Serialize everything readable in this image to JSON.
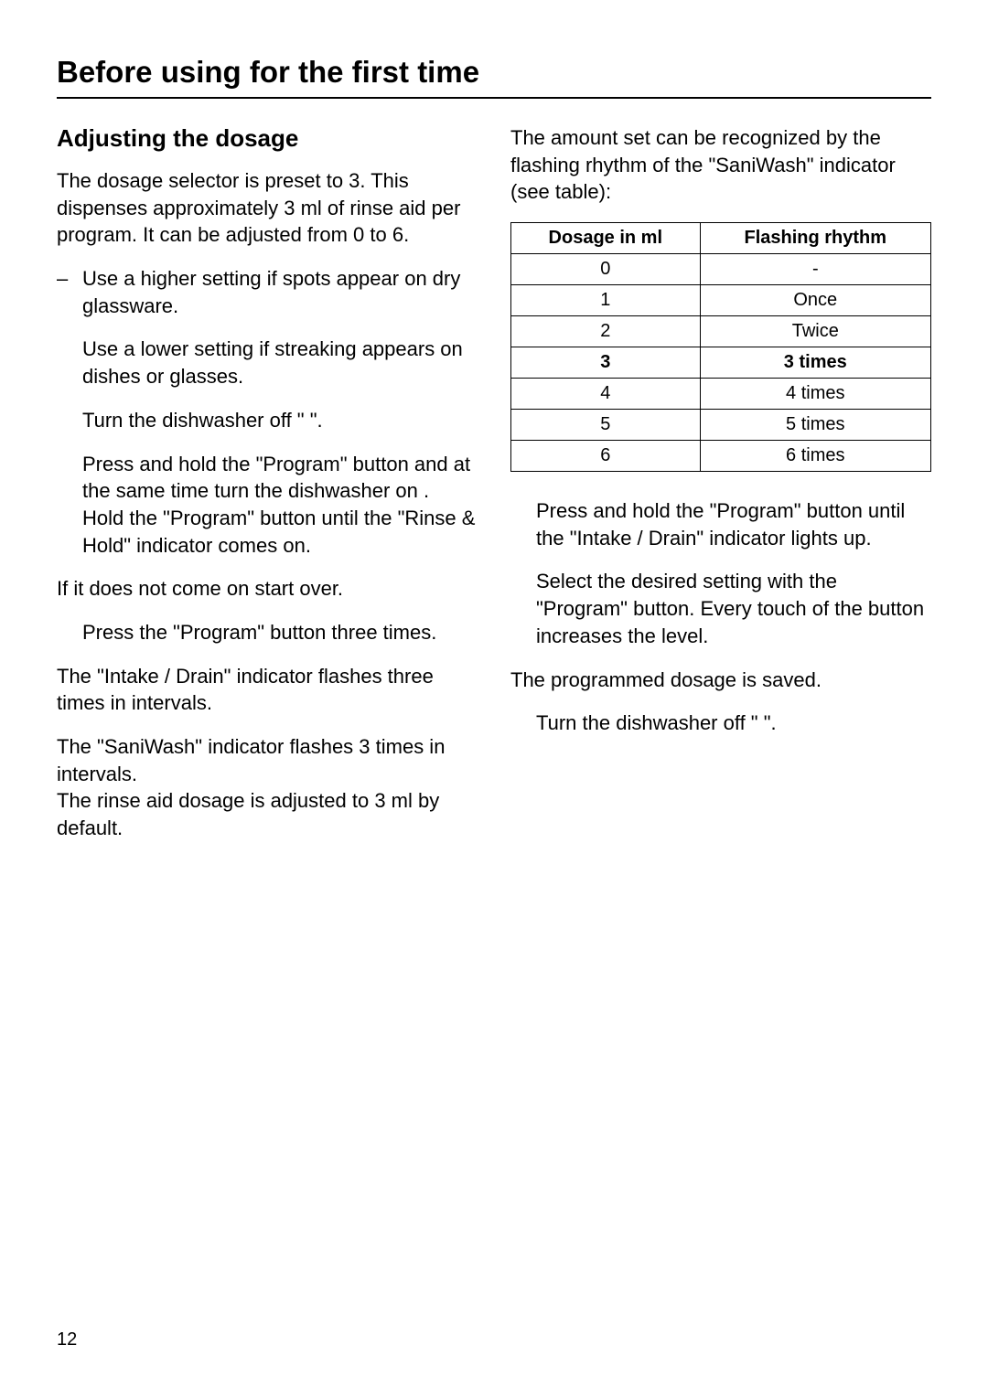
{
  "page_title": "Before using for the first time",
  "page_number": "12",
  "left_column": {
    "heading": "Adjusting the dosage",
    "intro": "The dosage selector is preset to 3. This dispenses approximately 3 ml of rinse aid per program. It can be adjusted from  0 to 6.",
    "items": [
      "Use a higher setting if spots appear on dry glassware.",
      "Use a lower setting if streaking appears on dishes or glasses.",
      "Turn the dishwasher off  \"     \".",
      "Press and hold the \"Program\" button and at the same time turn the dishwasher on  .\nHold the \"Program\" button until the \"Rinse & Hold\" indicator comes on."
    ],
    "after_items_1": "If it does not come on start over.",
    "items_2": [
      "Press the \"Program\" button three times."
    ],
    "after_items_2a": "The \"Intake / Drain\" indicator flashes three times in intervals.",
    "after_items_2b": "The \"SaniWash\" indicator flashes 3 times in intervals.\nThe rinse aid dosage is adjusted to 3 ml by default."
  },
  "right_column": {
    "intro": "The amount set can be recognized by the flashing rhythm of the \"SaniWash\" indicator (see table):",
    "table": {
      "headers": [
        "Dosage in ml",
        "Flashing rhythm"
      ],
      "rows": [
        {
          "dosage": "0",
          "rhythm": "-",
          "highlight": false
        },
        {
          "dosage": "1",
          "rhythm": "Once",
          "highlight": false
        },
        {
          "dosage": "2",
          "rhythm": "Twice",
          "highlight": false
        },
        {
          "dosage": "3",
          "rhythm": "3 times",
          "highlight": true
        },
        {
          "dosage": "4",
          "rhythm": "4 times",
          "highlight": false
        },
        {
          "dosage": "5",
          "rhythm": "5 times",
          "highlight": false
        },
        {
          "dosage": "6",
          "rhythm": "6 times",
          "highlight": false
        }
      ]
    },
    "items": [
      "Press and hold the \"Program\" button until the \"Intake / Drain\" indicator lights up.",
      "Select the desired setting with the \"Program\" button. Every touch of the button increases the level."
    ],
    "after_items_1": "The programmed dosage is saved.",
    "items_2": [
      "Turn the dishwasher off  \"     \"."
    ]
  },
  "styling": {
    "background_color": "#ffffff",
    "text_color": "#000000",
    "title_fontsize": 33,
    "heading_fontsize": 26,
    "body_fontsize": 22,
    "table_fontsize": 20,
    "pagenum_fontsize": 20,
    "rule_color": "#000000"
  }
}
